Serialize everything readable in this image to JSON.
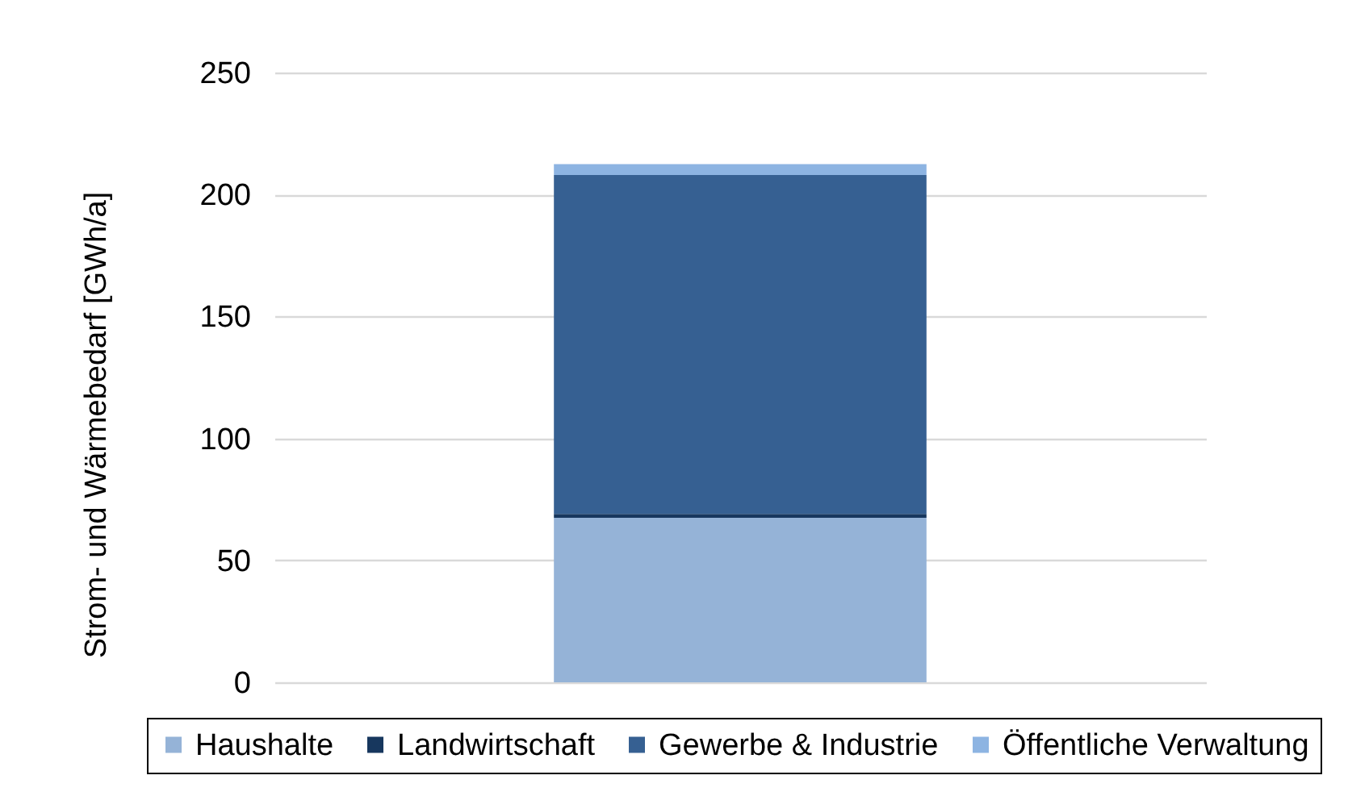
{
  "chart_data": {
    "type": "bar",
    "stacked": true,
    "ylabel": "Strom- und Wärmebedarf [GWh/a]",
    "categories": [
      null
    ],
    "series": [
      {
        "name": "Haushalte",
        "color": "#95b3d7",
        "values": [
          67.5
        ]
      },
      {
        "name": "Landwirtschaft",
        "color": "#17375e",
        "values": [
          1.5
        ]
      },
      {
        "name": "Gewerbe & Industrie",
        "color": "#366092",
        "values": [
          139
        ]
      },
      {
        "name": "Öffentliche Verwaltung",
        "color": "#8db4e2",
        "values": [
          4.5
        ]
      }
    ],
    "ylim": [
      0,
      250
    ],
    "yticks": [
      0,
      50,
      100,
      150,
      200,
      250
    ],
    "grid": "y",
    "legend": "bottom",
    "tick_labels": "y"
  }
}
